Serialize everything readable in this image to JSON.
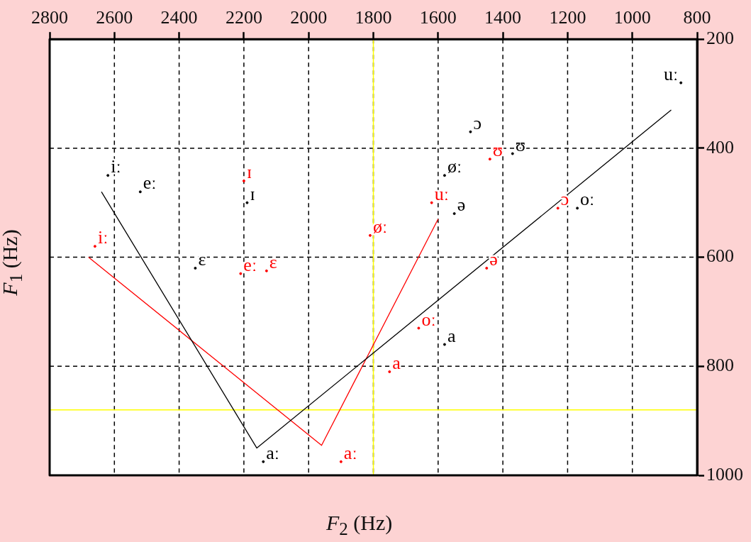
{
  "chart_data": {
    "type": "scatter",
    "xlabel": "F$_{2}$ (Hz)",
    "ylabel": "F$_{1}$ (Hz)",
    "xlim": [
      2800,
      800
    ],
    "ylim": [
      1000,
      200
    ],
    "xticks": [
      2800,
      2600,
      2400,
      2200,
      2000,
      1800,
      1600,
      1400,
      1200,
      1000,
      800
    ],
    "yticks": [
      200,
      400,
      600,
      800,
      1000
    ],
    "grid": true,
    "marker": "circle",
    "ref_lines": [
      {
        "axis": "x",
        "value": 1800,
        "color": "#ffff00"
      },
      {
        "axis": "y",
        "value": 880,
        "color": "#ffff00"
      }
    ],
    "series": [
      {
        "color": "#000000",
        "x": [
          2620,
          2520,
          2190,
          2350,
          1580,
          1500,
          1370,
          1550,
          1170,
          1580,
          2140,
          850
        ],
        "values": [
          450,
          480,
          500,
          620,
          450,
          370,
          410,
          520,
          510,
          760,
          975,
          280
        ],
        "value_labels": [
          "iː",
          "eː",
          "ɪ",
          "ɛ",
          "øː",
          "ɔ",
          "ʊ",
          "ə",
          "oː",
          "a",
          "aː",
          "uː"
        ]
      },
      {
        "color": "#ff0000",
        "x": [
          2660,
          2200,
          2210,
          2130,
          1810,
          1620,
          1440,
          1230,
          1450,
          1660,
          1750,
          1900
        ],
        "values": [
          580,
          460,
          630,
          625,
          560,
          500,
          420,
          510,
          620,
          730,
          810,
          975
        ],
        "value_labels": [
          "iː",
          "ɪ",
          "eː",
          "ɛ",
          "øː",
          "uː",
          "ʊ",
          "ɔ",
          "ə",
          "oː",
          "a",
          "aː"
        ]
      },
      {
        "type": "line",
        "marker": "none",
        "color": "#000000",
        "x": [
          2640,
          2160,
          880
        ],
        "values": [
          480,
          950,
          330
        ]
      },
      {
        "type": "line",
        "marker": "none",
        "color": "#ff0000",
        "x": [
          2680,
          1960,
          1600
        ],
        "values": [
          600,
          945,
          530
        ]
      }
    ]
  }
}
